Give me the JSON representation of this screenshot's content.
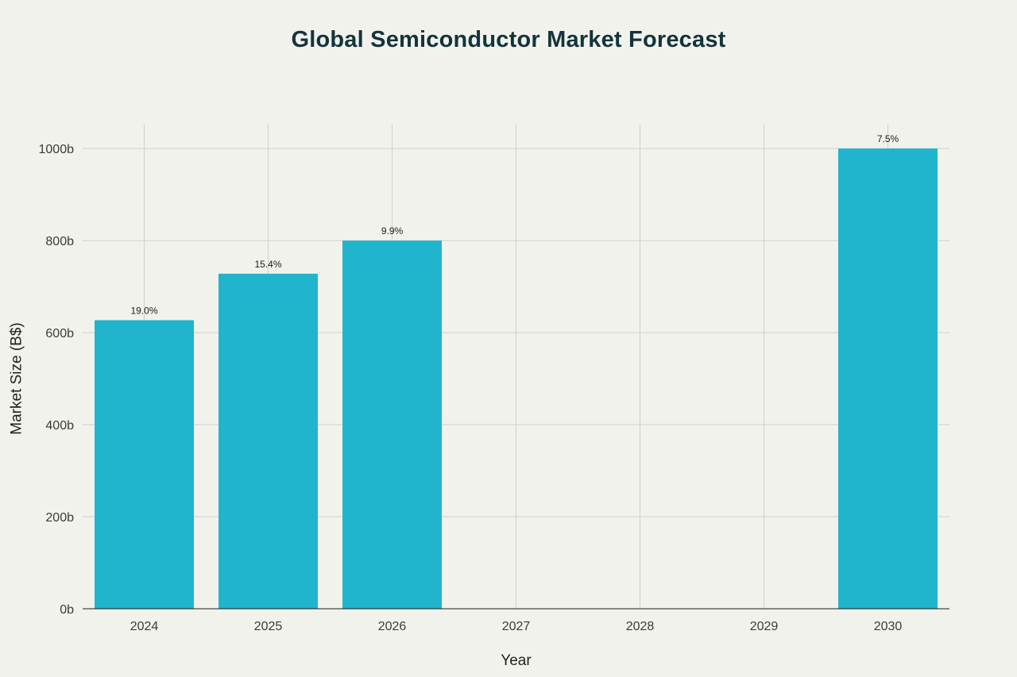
{
  "chart_data": {
    "type": "bar",
    "title": "Global Semiconductor Market Forecast",
    "xlabel": "Year",
    "ylabel": "Market Size (B$)",
    "categories": [
      "2024",
      "2025",
      "2026",
      "2027",
      "2028",
      "2029",
      "2030"
    ],
    "values": [
      627,
      728,
      800,
      null,
      null,
      null,
      1000
    ],
    "data_labels": [
      "19.0%",
      "15.4%",
      "9.9%",
      "",
      "",
      "",
      "7.5%"
    ],
    "ylim": [
      0,
      1052
    ],
    "yticks": [
      0,
      200,
      400,
      600,
      800,
      1000
    ],
    "ytick_labels": [
      "0b",
      "200b",
      "400b",
      "600b",
      "800b",
      "1000b"
    ],
    "bar_color": "#20b5cc",
    "grid": true,
    "legend": "none"
  }
}
